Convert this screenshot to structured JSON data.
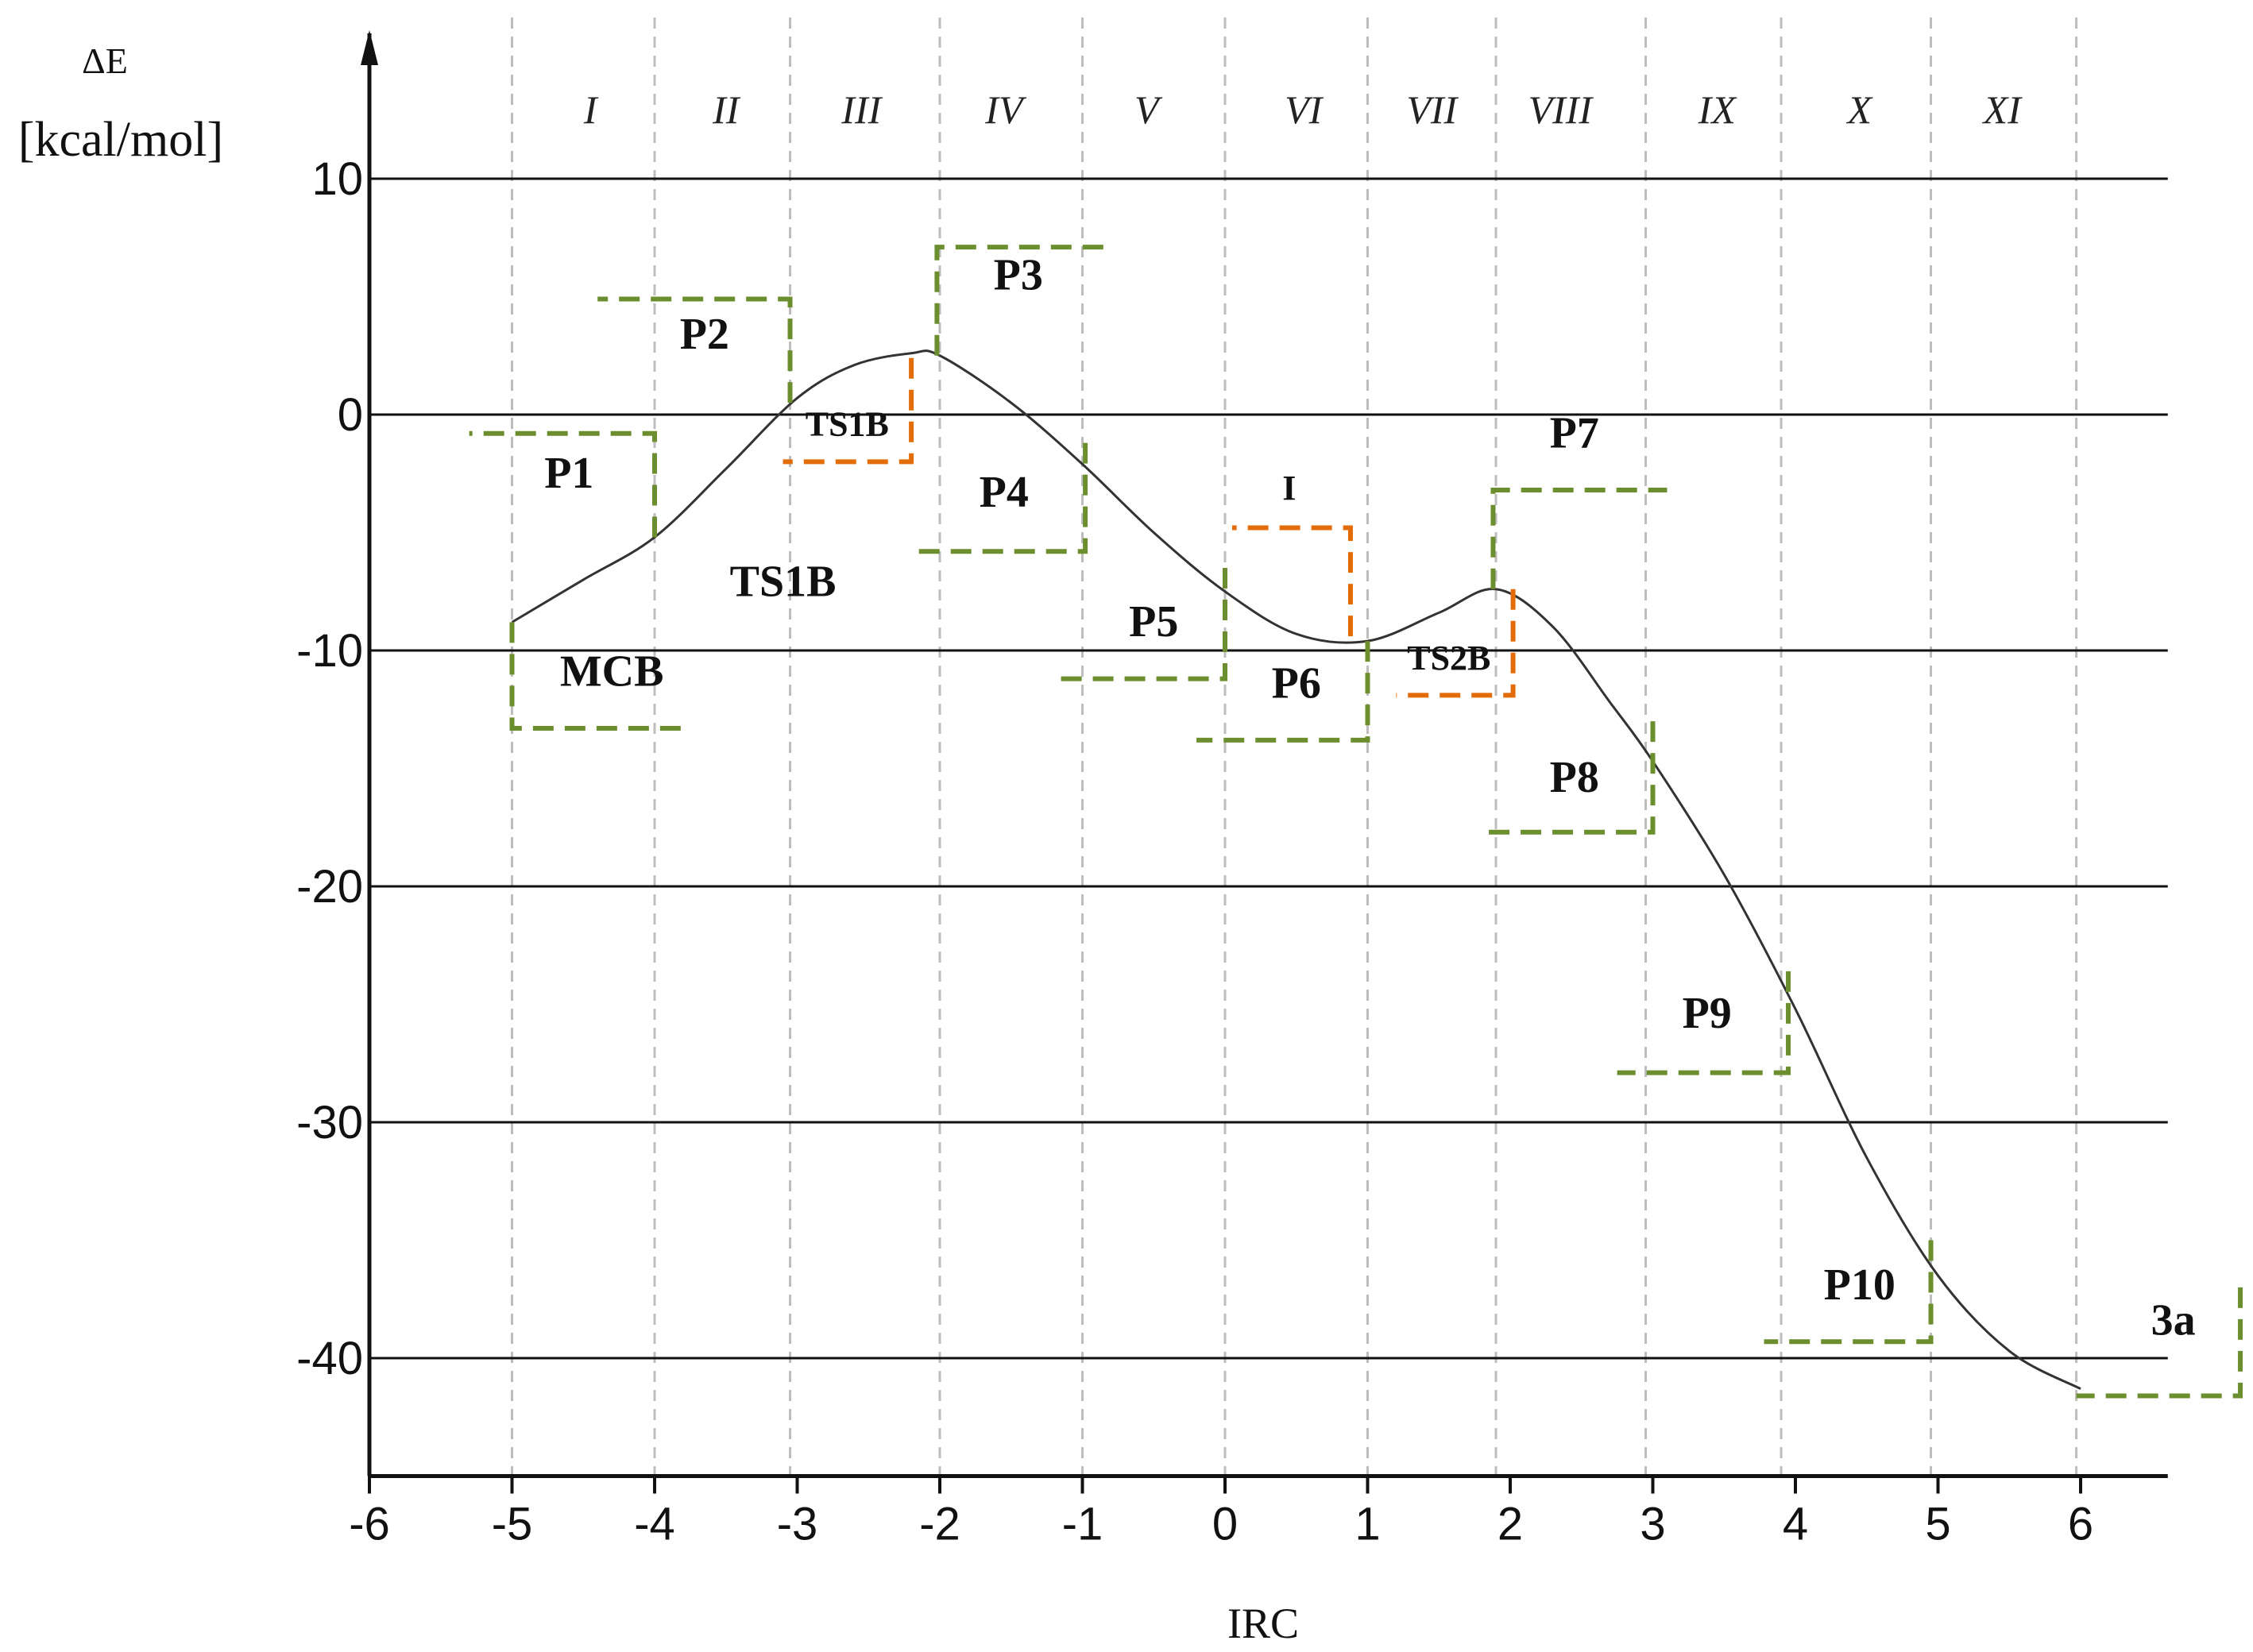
{
  "chart_data": {
    "type": "line",
    "ylabel_symbol": "ΔE",
    "ylabel_unit": "[kcal/mol]",
    "xlabel": "IRC",
    "xlim": [
      -6,
      6.5
    ],
    "ylim": [
      -45,
      15
    ],
    "x_ticks": [
      -6,
      -5,
      -4,
      -3,
      -2,
      -1,
      0,
      1,
      2,
      3,
      4,
      5,
      6
    ],
    "x_tick_labels": [
      "-6",
      "-5",
      "-4",
      "-3",
      "-2",
      "-1",
      "0",
      "1",
      "2",
      "3",
      "4",
      "5",
      "6"
    ],
    "y_ticks": [
      10,
      0,
      -10,
      -20,
      -30,
      -40
    ],
    "y_tick_labels": [
      "10",
      "0",
      "-10",
      "-20",
      "-30",
      "-40"
    ],
    "y_gridlines": [
      10,
      0,
      -10,
      -20,
      -30,
      -40
    ],
    "region_boundaries": [
      -5,
      -4,
      -3.05,
      -2,
      -1,
      0,
      1,
      1.9,
      2.95,
      3.9,
      4.95,
      5.97
    ],
    "regions": [
      {
        "label": "I",
        "x": -4.45
      },
      {
        "label": "II",
        "x": -3.5
      },
      {
        "label": "III",
        "x": -2.55
      },
      {
        "label": "IV",
        "x": -1.55
      },
      {
        "label": "V",
        "x": -0.55
      },
      {
        "label": "VI",
        "x": 0.55
      },
      {
        "label": "VII",
        "x": 1.45
      },
      {
        "label": "VIII",
        "x": 2.35
      },
      {
        "label": "IX",
        "x": 3.45
      },
      {
        "label": "X",
        "x": 4.45
      },
      {
        "label": "XI",
        "x": 5.45
      }
    ],
    "series": [
      {
        "color": "#333333",
        "x": [
          -5,
          -4.5,
          -4,
          -3.5,
          -3,
          -2.6,
          -2.2,
          -2,
          -1.5,
          -1,
          -0.5,
          0,
          0.5,
          1,
          1.5,
          1.9,
          2.3,
          2.7,
          3,
          3.5,
          4,
          4.5,
          5,
          5.5,
          6
        ],
        "y": [
          -8.8,
          -7.0,
          -5.2,
          -2.3,
          0.7,
          2.1,
          2.6,
          2.5,
          0.5,
          -2.1,
          -5.0,
          -7.5,
          -9.3,
          -9.6,
          -8.4,
          -7.4,
          -9.0,
          -12.2,
          -14.7,
          -19.5,
          -25.2,
          -31.5,
          -36.5,
          -39.7,
          -41.3
        ]
      }
    ],
    "steps": [
      {
        "label": "MCB",
        "color": "#6b8e2f",
        "v": -5,
        "y_from": -8.8,
        "y_to": -13.3,
        "h_to": -3.75,
        "lx": -4.3,
        "ly": -11.5
      },
      {
        "label": "P1",
        "color": "#6b8e2f",
        "v": -4,
        "y_from": -5.2,
        "y_to": -0.8,
        "h_to": -5.3,
        "lx": -4.6,
        "ly": -3.1
      },
      {
        "label": "TS1B",
        "color": "#6b8e2f",
        "lx": -3.1,
        "ly": -7.7
      },
      {
        "label": "P2",
        "color": "#6b8e2f",
        "v": -3.05,
        "y_from": 0.5,
        "y_to": 4.9,
        "h_to": -4.4,
        "lx": -3.65,
        "ly": 2.8
      },
      {
        "label": "TS1B",
        "color": "#e36c0a",
        "v": -2.2,
        "y_from": 2.4,
        "y_to": -2.0,
        "h_to": -3.1,
        "lx": -2.65,
        "ly": -0.9,
        "small": true
      },
      {
        "label": "P3",
        "color": "#6b8e2f",
        "v": -2.02,
        "y_from": 2.5,
        "y_to": 7.1,
        "h_to": -0.85,
        "lx": -1.45,
        "ly": 5.3
      },
      {
        "label": "P4",
        "color": "#6b8e2f",
        "v": -0.98,
        "y_from": -1.2,
        "y_to": -5.8,
        "h_to": -2.15,
        "lx": -1.55,
        "ly": -3.9
      },
      {
        "label": "P5",
        "color": "#6b8e2f",
        "v": 0,
        "y_from": -6.5,
        "y_to": -11.2,
        "h_to": -1.2,
        "lx": -0.5,
        "ly": -9.4
      },
      {
        "label": "I",
        "color": "#e36c0a",
        "v": 0.88,
        "y_from": -9.4,
        "y_to": -4.8,
        "h_to": 0.05,
        "lx": 0.45,
        "ly": -3.6,
        "small": true
      },
      {
        "label": "P6",
        "color": "#6b8e2f",
        "v": 1.0,
        "y_from": -9.6,
        "y_to": -13.8,
        "h_to": -0.2,
        "lx": 0.5,
        "ly": -12.0
      },
      {
        "label": "TS2B",
        "color": "#e36c0a",
        "v": 2.02,
        "y_from": -7.4,
        "y_to": -11.9,
        "h_to": 1.2,
        "lx": 1.57,
        "ly": -10.8,
        "small": true
      },
      {
        "label": "P7",
        "color": "#6b8e2f",
        "v": 1.88,
        "y_from": -7.4,
        "y_to": -3.2,
        "h_to": 3.1,
        "lx": 2.45,
        "ly": -1.4
      },
      {
        "label": "P8",
        "color": "#6b8e2f",
        "v": 3.0,
        "y_from": -13.0,
        "y_to": -17.7,
        "h_to": 1.85,
        "lx": 2.45,
        "ly": -16.0
      },
      {
        "label": "P9",
        "color": "#6b8e2f",
        "v": 3.95,
        "y_from": -23.6,
        "y_to": -27.9,
        "h_to": 2.75,
        "lx": 3.38,
        "ly": -26.0
      },
      {
        "label": "P10",
        "color": "#6b8e2f",
        "v": 4.95,
        "y_from": -35.0,
        "y_to": -39.3,
        "h_to": 3.78,
        "lx": 4.45,
        "ly": -37.5
      },
      {
        "label": "3a",
        "color": "#6b8e2f",
        "v": 7.12,
        "y_from": -37.0,
        "y_to": -41.6,
        "h_to": 5.97,
        "lx": 6.65,
        "ly": -39.0
      }
    ]
  }
}
